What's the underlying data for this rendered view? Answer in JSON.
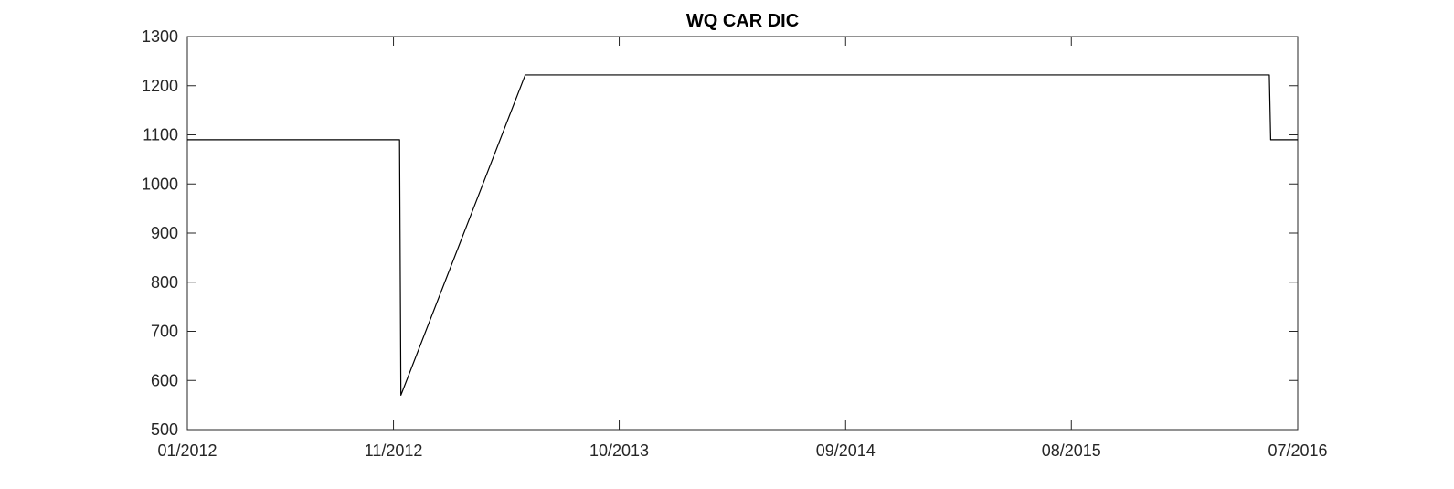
{
  "chart_data": {
    "type": "line",
    "title": "WQ CAR DIC",
    "xlabel": "",
    "ylabel": "",
    "x_type": "date",
    "xlim": [
      "2012-01-01",
      "2016-07-01"
    ],
    "ylim": [
      500,
      1300
    ],
    "xticks": [
      {
        "date": "2012-01-01",
        "label": "01/2012"
      },
      {
        "date": "2012-11-01",
        "label": "11/2012"
      },
      {
        "date": "2013-10-01",
        "label": "10/2013"
      },
      {
        "date": "2014-09-01",
        "label": "09/2014"
      },
      {
        "date": "2015-08-01",
        "label": "08/2015"
      },
      {
        "date": "2016-07-01",
        "label": "07/2016"
      }
    ],
    "yticks": [
      500,
      600,
      700,
      800,
      900,
      1000,
      1100,
      1200,
      1300
    ],
    "grid": false,
    "series": [
      {
        "color": "#000000",
        "points": [
          {
            "x": "2012-01-01",
            "y": 1090
          },
          {
            "x": "2012-11-10",
            "y": 1090
          },
          {
            "x": "2012-11-12",
            "y": 570
          },
          {
            "x": "2013-05-15",
            "y": 1222
          },
          {
            "x": "2016-05-20",
            "y": 1222
          },
          {
            "x": "2016-05-22",
            "y": 1090
          },
          {
            "x": "2016-07-01",
            "y": 1090
          }
        ]
      }
    ]
  }
}
